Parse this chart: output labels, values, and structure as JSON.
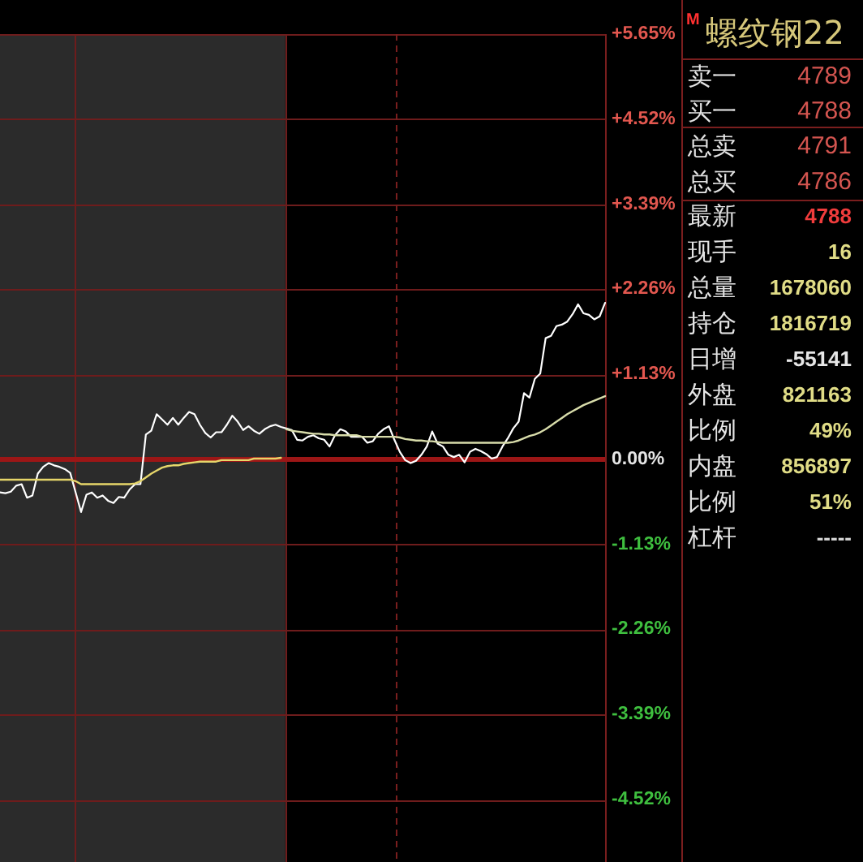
{
  "chart_data": [
    {
      "type": "line",
      "categories": [
        null,
        null,
        null,
        null,
        null,
        null,
        null,
        null,
        null,
        null,
        null,
        null,
        null,
        null,
        null,
        null,
        null,
        null,
        null,
        null,
        null,
        null,
        null,
        null,
        null,
        null,
        null,
        null,
        null,
        null,
        null,
        null,
        null,
        null,
        null,
        null,
        null,
        null,
        null,
        null,
        null,
        null,
        null,
        null,
        null,
        null,
        null,
        null,
        null,
        null,
        null,
        null,
        null,
        null,
        null,
        null,
        null,
        null,
        null,
        null,
        null,
        null,
        null,
        null,
        null,
        null,
        null,
        null,
        null,
        null,
        null,
        null,
        null,
        null,
        null,
        null,
        null,
        null,
        null,
        null,
        null,
        null,
        null,
        null,
        null,
        null,
        null,
        null,
        null,
        null,
        null,
        null,
        null,
        null,
        null,
        null,
        null,
        null,
        null,
        null,
        null,
        null,
        null,
        null,
        null,
        null,
        null,
        null,
        null,
        null,
        null,
        null,
        null
      ],
      "series": [
        {
          "color": "#ffffff",
          "values": [
            -0.44,
            -0.45,
            -0.43,
            -0.35,
            -0.33,
            -0.51,
            -0.48,
            -0.19,
            -0.1,
            -0.05,
            -0.08,
            -0.1,
            -0.13,
            -0.18,
            -0.44,
            -0.7,
            -0.47,
            -0.44,
            -0.51,
            -0.48,
            -0.55,
            -0.58,
            -0.5,
            -0.51,
            -0.4,
            -0.33,
            -0.33,
            0.33,
            0.38,
            0.6,
            0.53,
            0.46,
            0.55,
            0.46,
            0.55,
            0.63,
            0.6,
            0.46,
            0.35,
            0.29,
            0.36,
            0.36,
            0.46,
            0.58,
            0.5,
            0.39,
            0.44,
            0.38,
            0.34,
            0.4,
            0.44,
            0.46,
            0.43,
            0.41,
            0.39,
            0.26,
            0.25,
            0.3,
            0.32,
            0.28,
            0.26,
            0.17,
            0.32,
            0.4,
            0.37,
            0.3,
            0.3,
            0.3,
            0.22,
            0.24,
            0.34,
            0.4,
            0.44,
            0.26,
            0.1,
            -0.01,
            -0.05,
            -0.02,
            0.06,
            0.17,
            0.37,
            0.21,
            0.17,
            0.06,
            0.03,
            0.06,
            -0.04,
            0.1,
            0.14,
            0.11,
            0.07,
            0.01,
            0.03,
            0.17,
            0.28,
            0.41,
            0.5,
            0.88,
            0.82,
            1.07,
            1.14,
            1.61,
            1.64,
            1.77,
            1.79,
            1.83,
            1.93,
            2.06,
            1.94,
            1.92,
            1.86,
            1.9,
            2.08
          ]
        },
        {
          "color": "#e6d66a",
          "values": [
            -0.27,
            -0.27,
            -0.27,
            -0.27,
            -0.27,
            -0.27,
            -0.27,
            -0.27,
            -0.27,
            -0.27,
            -0.27,
            -0.27,
            -0.27,
            -0.27,
            -0.29,
            -0.33,
            -0.33,
            -0.33,
            -0.33,
            -0.33,
            -0.33,
            -0.33,
            -0.33,
            -0.33,
            -0.33,
            -0.32,
            -0.29,
            -0.24,
            -0.19,
            -0.15,
            -0.11,
            -0.09,
            -0.08,
            -0.08,
            -0.06,
            -0.05,
            -0.04,
            -0.03,
            -0.03,
            -0.03,
            -0.03,
            -0.01,
            -0.01,
            -0.01,
            -0.01,
            -0.01,
            -0.01,
            0.01,
            0.01,
            0.01,
            0.01,
            0.01,
            0.02,
            null,
            null,
            null,
            null,
            null,
            null,
            null,
            null,
            null,
            null,
            null,
            null,
            null,
            null,
            null,
            null,
            null,
            null,
            null,
            null,
            null,
            null,
            null,
            null,
            null,
            null,
            null,
            null,
            null,
            null,
            null,
            null,
            null,
            null,
            null,
            null,
            null,
            null,
            null,
            null,
            null,
            null,
            null,
            null,
            null,
            null,
            null,
            null,
            null,
            null,
            null,
            null,
            null,
            null,
            null,
            null,
            null,
            null,
            null,
            null
          ]
        },
        {
          "color": "#d8dcaa",
          "values": [
            null,
            null,
            null,
            null,
            null,
            null,
            null,
            null,
            null,
            null,
            null,
            null,
            null,
            null,
            null,
            null,
            null,
            null,
            null,
            null,
            null,
            null,
            null,
            null,
            null,
            null,
            null,
            null,
            null,
            null,
            null,
            null,
            null,
            null,
            null,
            null,
            null,
            null,
            null,
            null,
            null,
            null,
            null,
            null,
            null,
            null,
            null,
            null,
            null,
            null,
            null,
            null,
            null,
            0.4,
            0.38,
            0.37,
            0.36,
            0.35,
            0.34,
            0.34,
            0.33,
            0.33,
            0.32,
            0.32,
            0.32,
            0.32,
            0.32,
            0.3,
            0.3,
            0.3,
            0.3,
            0.3,
            0.3,
            0.3,
            0.29,
            0.27,
            0.26,
            0.25,
            0.25,
            0.24,
            0.24,
            0.23,
            0.22,
            0.22,
            0.22,
            0.22,
            0.22,
            0.22,
            0.22,
            0.22,
            0.22,
            0.22,
            0.22,
            0.22,
            0.22,
            0.23,
            0.25,
            0.28,
            0.31,
            0.33,
            0.36,
            0.4,
            0.45,
            0.5,
            0.55,
            0.6,
            0.64,
            0.68,
            0.72,
            0.75,
            0.78,
            0.81,
            0.84
          ]
        }
      ],
      "ylim": [
        -5.35,
        5.65
      ],
      "yticks": [
        {
          "value": 5.65,
          "label": "+5.65%"
        },
        {
          "value": 4.52,
          "label": "+4.52%"
        },
        {
          "value": 3.39,
          "label": "+3.39%"
        },
        {
          "value": 2.26,
          "label": "+2.26%"
        },
        {
          "value": 1.13,
          "label": "+1.13%"
        },
        {
          "value": 0,
          "label": "0.00%"
        },
        {
          "value": -1.13,
          "label": "-1.13%"
        },
        {
          "value": -2.26,
          "label": "-2.26%"
        },
        {
          "value": -3.39,
          "label": "-3.39%"
        },
        {
          "value": -4.52,
          "label": "-4.52%"
        }
      ],
      "grid": "y",
      "tick_labels": "y",
      "ref_lines": [
        {
          "axis": "y",
          "value": 0,
          "color": "#9c1616"
        }
      ]
    },
    {
      "type": "other",
      "title": "螺纹钢22",
      "annotations": [
        "M"
      ],
      "categories": [
        "卖一",
        "买一",
        "总卖",
        "总买",
        "最新",
        "现手",
        "总量",
        "持仓",
        "日增",
        "外盘",
        "比例",
        "内盘",
        "比例",
        "杠杆"
      ],
      "value_labels": [
        "4789",
        "4788",
        "4791",
        "4786",
        "4788",
        "16",
        "1678060",
        "1816719",
        "-55141",
        "821163",
        "49%",
        "856897",
        "51%",
        "-----"
      ],
      "colors": [
        "#d45550",
        "#d45550",
        "#d45550",
        "#d45550",
        "#f03c3c",
        "#e0dc86",
        "#e0dc86",
        "#e0dc86",
        "#e6e6e6",
        "#e0dc86",
        "#e0dc86",
        "#e0dc86",
        "#e0dc86",
        "#d8d8d8"
      ]
    }
  ]
}
